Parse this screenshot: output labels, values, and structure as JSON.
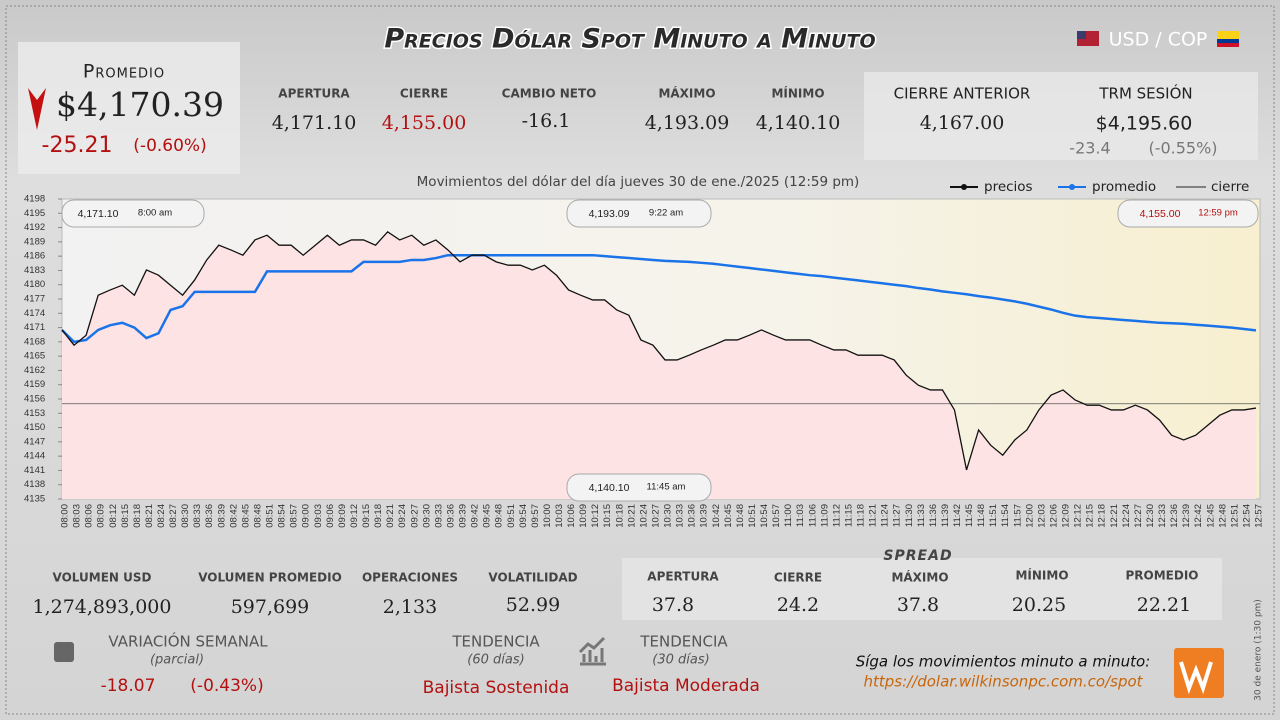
{
  "header": {
    "title": "Precios Dólar Spot Minuto a Minuto",
    "pair": "USD / COP"
  },
  "summary": {
    "label": "Promedio",
    "value": "$4,170.39",
    "change": "-25.21",
    "change_pct": "(-0.60%)"
  },
  "stats": [
    {
      "label": "APERTURA",
      "value": "4,171.10"
    },
    {
      "label": "CIERRE",
      "value": "4,155.00"
    },
    {
      "label": "CAMBIO NETO",
      "value": "-16.1"
    },
    {
      "label": "MÁXIMO",
      "value": "4,193.09"
    },
    {
      "label": "MÍNIMO",
      "value": "4,140.10"
    }
  ],
  "previous": {
    "label": "CIERRE ANTERIOR",
    "value": "4,167.00"
  },
  "trm": {
    "label": "TRM SESIÓN",
    "value": "$4,195.60",
    "change": "-23.4",
    "change_pct": "(-0.55%)"
  },
  "market": [
    {
      "label": "VOLUMEN USD",
      "value": "1,274,893,000"
    },
    {
      "label": "VOLUMEN PROMEDIO",
      "value": "597,699"
    },
    {
      "label": "OPERACIONES",
      "value": "2,133"
    },
    {
      "label": "VOLATILIDAD",
      "value": "52.99"
    }
  ],
  "spread": {
    "title": "SPREAD",
    "items": [
      {
        "label": "APERTURA",
        "value": "37.8"
      },
      {
        "label": "CIERRE",
        "value": "24.2"
      },
      {
        "label": "MÁXIMO",
        "value": "37.8"
      },
      {
        "label": "MÍNIMO",
        "value": "20.25"
      },
      {
        "label": "PROMEDIO",
        "value": "22.21"
      }
    ]
  },
  "weekly": {
    "label": "VARIACIÓN SEMANAL",
    "note": "(parcial)",
    "change": "-18.07",
    "change_pct": "(-0.43%)"
  },
  "trends": [
    {
      "label": "TENDENCIA",
      "period": "(60 días)",
      "value": "Bajista Sostenida"
    },
    {
      "label": "TENDENCIA",
      "period": "(30 días)",
      "value": "Bajista Moderada"
    }
  ],
  "footer": {
    "cta": "Síga los movimientos minuto a minuto:",
    "link": "https://dolar.wilkinsonpc.com.co/spot",
    "note": "30 de enero (1:30 pm)"
  },
  "chart_data": {
    "type": "line",
    "title": "Movimientos del dólar del día jueves 30 de ene./2025 (12:59 pm)",
    "categories": [
      "08:00",
      "08:03",
      "08:06",
      "08:09",
      "08:12",
      "08:15",
      "08:18",
      "08:21",
      "08:24",
      "08:27",
      "08:30",
      "08:33",
      "08:36",
      "08:39",
      "08:42",
      "08:45",
      "08:48",
      "08:51",
      "08:54",
      "08:57",
      "09:00",
      "09:03",
      "09:06",
      "09:09",
      "09:12",
      "09:15",
      "09:18",
      "09:21",
      "09:24",
      "09:27",
      "09:30",
      "09:33",
      "09:36",
      "09:39",
      "09:42",
      "09:45",
      "09:48",
      "09:51",
      "09:54",
      "09:57",
      "10:00",
      "10:03",
      "10:06",
      "10:09",
      "10:12",
      "10:15",
      "10:18",
      "10:21",
      "10:24",
      "10:27",
      "10:30",
      "10:33",
      "10:36",
      "10:39",
      "10:42",
      "10:45",
      "10:48",
      "10:51",
      "10:54",
      "10:57",
      "11:00",
      "11:03",
      "11:06",
      "11:09",
      "11:12",
      "11:15",
      "11:18",
      "11:21",
      "11:24",
      "11:27",
      "11:30",
      "11:33",
      "11:36",
      "11:39",
      "11:42",
      "11:45",
      "11:48",
      "11:51",
      "11:54",
      "11:57",
      "12:00",
      "12:03",
      "12:06",
      "12:09",
      "12:12",
      "12:15",
      "12:18",
      "12:21",
      "12:24",
      "12:27",
      "12:30",
      "12:33",
      "12:36",
      "12:39",
      "12:42",
      "12:45",
      "12:48",
      "12:51",
      "12:54",
      "12:57"
    ],
    "series": [
      {
        "name": "precios",
        "color": "#111111",
        "values": [
          4170.5,
          4167.3,
          4169.4,
          4177.8,
          4178.9,
          4179.9,
          4177.8,
          4183.1,
          4182.0,
          4179.9,
          4177.8,
          4181.0,
          4185.2,
          4188.3,
          4187.3,
          4186.2,
          4189.4,
          4190.4,
          4188.3,
          4188.3,
          4186.2,
          4188.3,
          4190.4,
          4188.3,
          4189.4,
          4189.4,
          4188.3,
          4191.1,
          4189.4,
          4190.4,
          4188.3,
          4189.4,
          4187.3,
          4184.8,
          4186.2,
          4186.2,
          4184.8,
          4184.1,
          4184.1,
          4183.1,
          4184.1,
          4182.0,
          4178.9,
          4177.8,
          4176.8,
          4176.8,
          4174.7,
          4173.6,
          4168.4,
          4167.3,
          4164.2,
          4164.2,
          4165.2,
          4166.3,
          4167.3,
          4168.4,
          4168.4,
          4169.4,
          4170.5,
          4169.4,
          4168.4,
          4168.4,
          4168.4,
          4167.3,
          4166.3,
          4166.3,
          4165.2,
          4165.2,
          4165.2,
          4164.2,
          4161.0,
          4158.9,
          4157.9,
          4157.9,
          4153.7,
          4141.1,
          4149.5,
          4146.3,
          4144.2,
          4147.4,
          4149.5,
          4153.7,
          4156.8,
          4157.9,
          4155.8,
          4154.7,
          4154.7,
          4153.7,
          4153.7,
          4154.7,
          4153.7,
          4151.6,
          4148.4,
          4147.4,
          4148.4,
          4150.5,
          4152.6,
          4153.7,
          4153.7,
          4154.1
        ]
      },
      {
        "name": "promedio",
        "color": "#1a73e8",
        "values": [
          4170.5,
          4168.0,
          4168.4,
          4170.5,
          4171.5,
          4172.0,
          4171.0,
          4168.8,
          4169.8,
          4174.7,
          4175.5,
          4178.5,
          4178.5,
          4178.5,
          4178.5,
          4178.5,
          4178.5,
          4182.8,
          4182.8,
          4182.8,
          4182.8,
          4182.8,
          4182.8,
          4182.8,
          4182.8,
          4184.8,
          4184.8,
          4184.8,
          4184.8,
          4185.2,
          4185.2,
          4185.6,
          4186.2,
          4186.2,
          4186.2,
          4186.2,
          4186.2,
          4186.2,
          4186.2,
          4186.2,
          4186.2,
          4186.2,
          4186.2,
          4186.2,
          4186.2,
          4186.0,
          4185.8,
          4185.6,
          4185.4,
          4185.2,
          4185.0,
          4184.9,
          4184.8,
          4184.6,
          4184.4,
          4184.1,
          4183.8,
          4183.5,
          4183.2,
          4182.9,
          4182.6,
          4182.3,
          4182.0,
          4181.8,
          4181.5,
          4181.2,
          4180.9,
          4180.6,
          4180.3,
          4180.0,
          4179.7,
          4179.3,
          4179.0,
          4178.6,
          4178.3,
          4178.0,
          4177.6,
          4177.3,
          4176.9,
          4176.5,
          4176.0,
          4175.4,
          4174.8,
          4174.1,
          4173.5,
          4173.2,
          4173.0,
          4172.8,
          4172.6,
          4172.4,
          4172.2,
          4172.0,
          4171.9,
          4171.8,
          4171.6,
          4171.4,
          4171.2,
          4171.0,
          4170.7,
          4170.4
        ]
      }
    ],
    "close_line": {
      "name": "cierre",
      "value": 4155,
      "color": "#555555"
    },
    "area_color": "#fde3e3",
    "annotations": [
      {
        "label": "4,171.10",
        "time": "8:00 am"
      },
      {
        "label": "4,193.09",
        "time": "9:22 am"
      },
      {
        "label": "4,155.00",
        "time": "12:59 pm"
      },
      {
        "label": "4,140.10",
        "time": "11:45 am"
      }
    ],
    "ylim": [
      4135,
      4198
    ],
    "yticks": [
      4135,
      4138,
      4141,
      4144,
      4147,
      4150,
      4153,
      4156,
      4159,
      4162,
      4165,
      4168,
      4171,
      4174,
      4177,
      4180,
      4183,
      4186,
      4189,
      4192,
      4195,
      4198
    ]
  }
}
